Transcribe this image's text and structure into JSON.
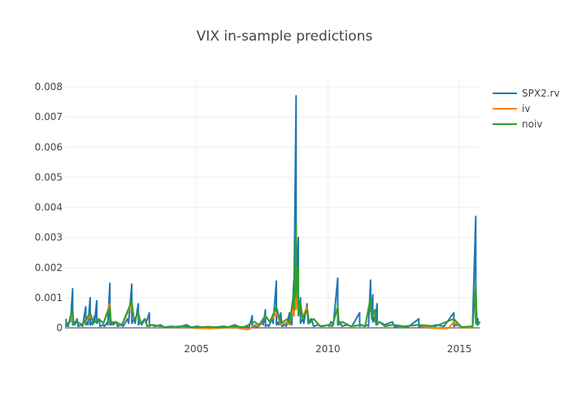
{
  "chart_data": {
    "type": "line",
    "title": "VIX in-sample predictions",
    "xlabel": "",
    "ylabel": "",
    "xlim": [
      "2000-01",
      "2015-10"
    ],
    "ylim": [
      -0.0002,
      0.0081
    ],
    "grid": true,
    "legend_position": "top-right",
    "x_ticks": [
      "2005",
      "2010",
      "2015"
    ],
    "y_ticks": [
      "0",
      "0.001",
      "0.002",
      "0.003",
      "0.004",
      "0.005",
      "0.006",
      "0.007",
      "0.008"
    ],
    "series": [
      {
        "name": "SPX2.rv",
        "color": "#1f77b4",
        "points": [
          [
            "2000-01",
            0.0003
          ],
          [
            "2000-02",
            0.0001
          ],
          [
            "2000-03",
            0.0004
          ],
          [
            "2000-04",
            0.0013
          ],
          [
            "2000-05",
            0.0002
          ],
          [
            "2000-06",
            0.0003
          ],
          [
            "2000-08",
            0.0001
          ],
          [
            "2000-10",
            0.0007
          ],
          [
            "2000-11",
            0.0002
          ],
          [
            "2000-12",
            0.001
          ],
          [
            "2001-01",
            0.0002
          ],
          [
            "2001-02",
            0.0004
          ],
          [
            "2001-03",
            0.0009
          ],
          [
            "2001-04",
            0.0003
          ],
          [
            "2001-06",
            0.0001
          ],
          [
            "2001-08",
            0.0002
          ],
          [
            "2001-09",
            0.00148
          ],
          [
            "2001-10",
            0.0002
          ],
          [
            "2001-12",
            0.0002
          ],
          [
            "2002-02",
            0.0001
          ],
          [
            "2002-05",
            0.0003
          ],
          [
            "2002-07",
            0.00145
          ],
          [
            "2002-08",
            0.0003
          ],
          [
            "2002-10",
            0.0008
          ],
          [
            "2002-11",
            0.0002
          ],
          [
            "2003-01",
            0.0003
          ],
          [
            "2003-03",
            0.0005
          ],
          [
            "2003-04",
            0.0001
          ],
          [
            "2003-08",
            0.0001
          ],
          [
            "2004-01",
            5e-05
          ],
          [
            "2004-08",
            0.0001
          ],
          [
            "2005-01",
            5e-05
          ],
          [
            "2005-06",
            4e-05
          ],
          [
            "2006-01",
            5e-05
          ],
          [
            "2006-06",
            0.0001
          ],
          [
            "2006-12",
            3e-05
          ],
          [
            "2007-02",
            0.0004
          ],
          [
            "2007-03",
            5e-05
          ],
          [
            "2007-07",
            0.0002
          ],
          [
            "2007-08",
            0.0006
          ],
          [
            "2007-09",
            0.0001
          ],
          [
            "2007-11",
            0.0003
          ],
          [
            "2008-01",
            0.00155
          ],
          [
            "2008-02",
            0.0002
          ],
          [
            "2008-03",
            0.0005
          ],
          [
            "2008-05",
            0.0001
          ],
          [
            "2008-07",
            0.0005
          ],
          [
            "2008-08",
            0.0002
          ],
          [
            "2008-09",
            0.0016
          ],
          [
            "2008-10",
            0.0077
          ],
          [
            "2008-11",
            0.003
          ],
          [
            "2008-12",
            0.001
          ],
          [
            "2009-01",
            0.0003
          ],
          [
            "2009-03",
            0.0008
          ],
          [
            "2009-05",
            0.0003
          ],
          [
            "2009-08",
            0.0001
          ],
          [
            "2010-01",
            0.0001
          ],
          [
            "2010-02",
            0.0002
          ],
          [
            "2010-05",
            0.00165
          ],
          [
            "2010-06",
            0.0002
          ],
          [
            "2010-09",
            0.0001
          ],
          [
            "2011-03",
            0.0005
          ],
          [
            "2011-04",
            0.0001
          ],
          [
            "2011-07",
            0.0001
          ],
          [
            "2011-08",
            0.00158
          ],
          [
            "2011-09",
            0.0011
          ],
          [
            "2011-10",
            0.0004
          ],
          [
            "2011-11",
            0.0008
          ],
          [
            "2011-12",
            0.0002
          ],
          [
            "2012-06",
            0.0002
          ],
          [
            "2012-09",
            5e-05
          ],
          [
            "2013-06",
            0.0003
          ],
          [
            "2013-07",
            5e-05
          ],
          [
            "2014-02",
            0.0001
          ],
          [
            "2014-10",
            0.0005
          ],
          [
            "2014-11",
            0.0001
          ],
          [
            "2015-06",
            5e-05
          ],
          [
            "2015-08",
            0.0037
          ],
          [
            "2015-09",
            0.0003
          ],
          [
            "2015-10",
            0.0002
          ]
        ]
      },
      {
        "name": "iv",
        "color": "#ff7f0e",
        "points": [
          [
            "2000-01",
            0.0002
          ],
          [
            "2000-04",
            0.0005
          ],
          [
            "2000-06",
            0.0002
          ],
          [
            "2000-12",
            0.0004
          ],
          [
            "2001-04",
            0.0003
          ],
          [
            "2001-09",
            0.0008
          ],
          [
            "2001-11",
            0.0002
          ],
          [
            "2002-07",
            0.0008
          ],
          [
            "2002-10",
            0.0005
          ],
          [
            "2003-01",
            0.0003
          ],
          [
            "2003-04",
            0.0001
          ],
          [
            "2004-06",
            5e-05
          ],
          [
            "2005-06",
            -2e-05
          ],
          [
            "2006-06",
            2e-05
          ],
          [
            "2006-12",
            -5e-05
          ],
          [
            "2007-03",
            0.0001
          ],
          [
            "2007-08",
            0.0004
          ],
          [
            "2008-01",
            0.0005
          ],
          [
            "2008-06",
            0.0002
          ],
          [
            "2008-09",
            0.0008
          ],
          [
            "2008-10",
            0.0015
          ],
          [
            "2008-11",
            0.0012
          ],
          [
            "2008-12",
            0.0008
          ],
          [
            "2009-03",
            0.0007
          ],
          [
            "2009-06",
            0.0003
          ],
          [
            "2010-01",
            0.0001
          ],
          [
            "2010-05",
            0.0007
          ],
          [
            "2010-07",
            0.0002
          ],
          [
            "2011-04",
            0.0001
          ],
          [
            "2011-08",
            0.001
          ],
          [
            "2011-10",
            0.0006
          ],
          [
            "2011-12",
            0.0002
          ],
          [
            "2012-06",
            0.0001
          ],
          [
            "2013-06",
            0.0001
          ],
          [
            "2014-06",
            -2e-05
          ],
          [
            "2014-10",
            0.0002
          ],
          [
            "2015-06",
            2e-05
          ],
          [
            "2015-08",
            0.0013
          ],
          [
            "2015-10",
            0.0002
          ]
        ]
      },
      {
        "name": "noiv",
        "color": "#2ca02c",
        "points": [
          [
            "2000-01",
            0.0002
          ],
          [
            "2000-04",
            0.0006
          ],
          [
            "2000-06",
            0.0002
          ],
          [
            "2000-12",
            0.0005
          ],
          [
            "2001-04",
            0.0003
          ],
          [
            "2001-09",
            0.0007
          ],
          [
            "2001-11",
            0.0002
          ],
          [
            "2002-07",
            0.0009
          ],
          [
            "2002-10",
            0.0005
          ],
          [
            "2003-01",
            0.0003
          ],
          [
            "2003-04",
            0.0001
          ],
          [
            "2004-06",
            5e-05
          ],
          [
            "2005-06",
            3e-05
          ],
          [
            "2006-06",
            5e-05
          ],
          [
            "2007-03",
            0.0002
          ],
          [
            "2007-08",
            0.0004
          ],
          [
            "2008-01",
            0.0007
          ],
          [
            "2008-06",
            0.0003
          ],
          [
            "2008-09",
            0.0012
          ],
          [
            "2008-10",
            0.0035
          ],
          [
            "2008-11",
            0.002
          ],
          [
            "2008-12",
            0.0008
          ],
          [
            "2009-03",
            0.0006
          ],
          [
            "2009-06",
            0.0003
          ],
          [
            "2010-01",
            0.0001
          ],
          [
            "2010-05",
            0.0007
          ],
          [
            "2010-07",
            0.0002
          ],
          [
            "2011-04",
            0.0001
          ],
          [
            "2011-08",
            0.001
          ],
          [
            "2011-10",
            0.0006
          ],
          [
            "2011-12",
            0.0002
          ],
          [
            "2012-06",
            0.0001
          ],
          [
            "2013-06",
            0.0001
          ],
          [
            "2014-10",
            0.0003
          ],
          [
            "2015-06",
            5e-05
          ],
          [
            "2015-08",
            0.0014
          ],
          [
            "2015-10",
            0.0002
          ]
        ]
      }
    ]
  }
}
